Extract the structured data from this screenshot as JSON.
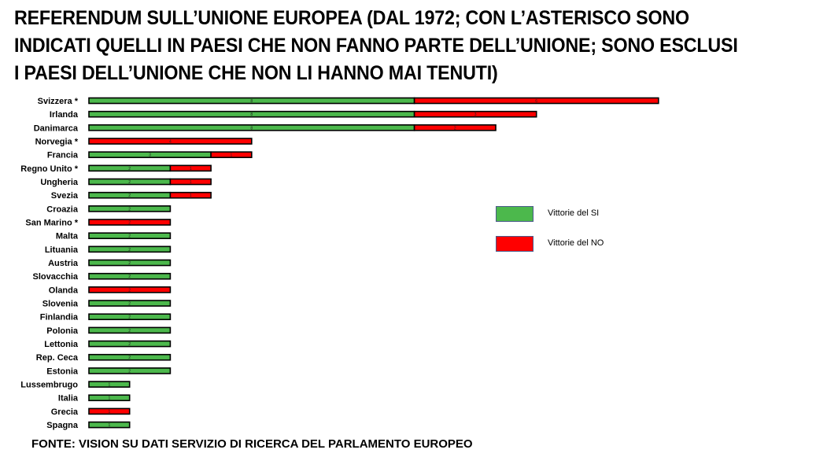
{
  "title": "REFERENDUM SULL’UNIONE EUROPEA (DAL 1972; CON L’ASTERISCO SONO INDICATI QUELLI IN PAESI CHE NON FANNO PARTE DELL’UNIONE; SONO ESCLUSI I PAESI DELL’UNIONE CHE NON LI HANNO MAI TENUTI)",
  "source": "FONTE: VISION SU DATI SERVIZIO DI RICERCA DEL PARLAMENTO EUROPEO",
  "colors": {
    "yes": "#4cb84c",
    "no": "#ff0000",
    "border": "#000000"
  },
  "chart_data": {
    "type": "bar",
    "orientation": "horizontal",
    "stacked": true,
    "categories": [
      "Svizzera *",
      "Irlanda",
      "Danimarca",
      "Norvegia *",
      "Francia",
      "Regno Unito *",
      "Ungheria",
      "Svezia",
      "Croazia",
      "San Marino *",
      "Malta",
      "Lituania",
      "Austria",
      "Slovacchia",
      "Olanda",
      "Slovenia",
      "Finlandia",
      "Polonia",
      "Lettonia",
      "Rep. Ceca",
      "Estonia",
      "Lussembrugo",
      "Italia",
      "Grecia",
      "Spagna"
    ],
    "series": [
      {
        "name": "Vittorie del SI",
        "color": "#4cb84c",
        "values": [
          8,
          8,
          8,
          0,
          3,
          2,
          2,
          2,
          2,
          0,
          2,
          2,
          2,
          2,
          0,
          2,
          2,
          2,
          2,
          2,
          2,
          1,
          1,
          0,
          1
        ]
      },
      {
        "name": "Vittorie del NO",
        "color": "#ff0000",
        "values": [
          6,
          3,
          2,
          4,
          1,
          1,
          1,
          1,
          0,
          2,
          0,
          0,
          0,
          0,
          2,
          0,
          0,
          0,
          0,
          0,
          0,
          0,
          0,
          1,
          0
        ]
      }
    ],
    "legend": "right"
  }
}
